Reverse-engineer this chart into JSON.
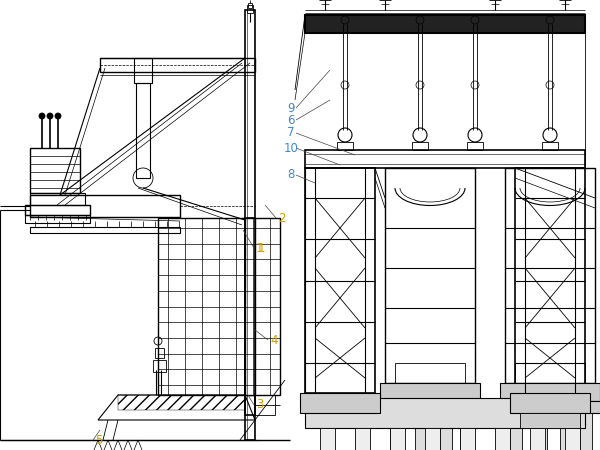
{
  "bg_color": "#ffffff",
  "line_color": "#000000",
  "label_color": "#d4a000",
  "label_color2": "#4488cc",
  "fig_width": 6.0,
  "fig_height": 4.5,
  "dpi": 100
}
